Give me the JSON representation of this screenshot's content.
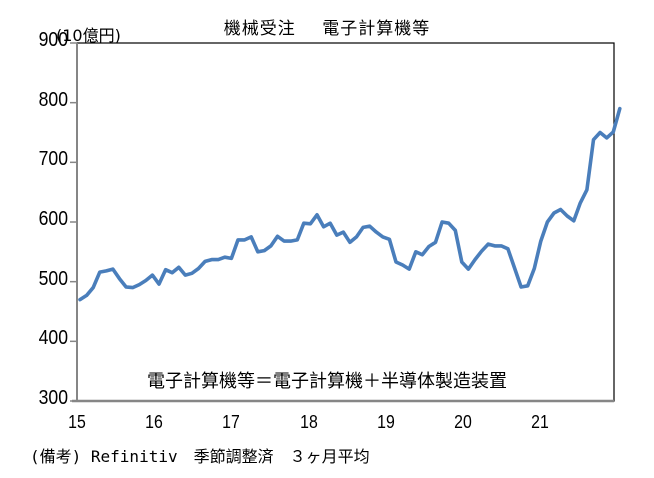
{
  "chart_data": {
    "type": "line",
    "title": "機械受注　電子計算機等",
    "title_parts": [
      "機械受注",
      "電子計算機等"
    ],
    "ylabel": "(10億円)",
    "xlabel": "",
    "ylim": [
      300,
      900
    ],
    "yticks": [
      300,
      400,
      500,
      600,
      700,
      800,
      900
    ],
    "xticks": [
      "15",
      "16",
      "17",
      "18",
      "19",
      "20",
      "21"
    ],
    "grid": false,
    "legend": null,
    "annotation": "電子計算機等＝電子計算機＋半導体製造装置",
    "note": "(備考) Refinitiv　季節調整済　３ヶ月平均",
    "line_color": "#4a7ebb",
    "series": [
      {
        "name": "電子計算機等",
        "start": "2015-01",
        "frequency": "monthly",
        "values": [
          470,
          477,
          490,
          516,
          518,
          521,
          505,
          491,
          490,
          495,
          502,
          511,
          496,
          520,
          515,
          524,
          511,
          514,
          522,
          534,
          537,
          537,
          541,
          539,
          570,
          570,
          575,
          550,
          552,
          560,
          576,
          568,
          568,
          570,
          598,
          597,
          612,
          592,
          598,
          578,
          583,
          566,
          575,
          591,
          593,
          583,
          575,
          571,
          533,
          528,
          521,
          550,
          545,
          559,
          566,
          600,
          598,
          586,
          533,
          521,
          537,
          551,
          563,
          560,
          560,
          555,
          523,
          491,
          493,
          522,
          568,
          600,
          615,
          621,
          610,
          602,
          632,
          654,
          738,
          750,
          741,
          751,
          790
        ]
      }
    ]
  }
}
